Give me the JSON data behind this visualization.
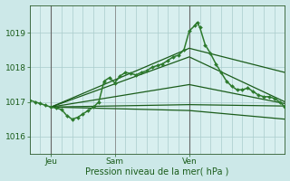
{
  "bg_color": "#cce8e8",
  "plot_bg_color": "#d8efef",
  "grid_color": "#aacccc",
  "line_color": "#1a5c1a",
  "line_color2": "#2e7d2e",
  "xlabel": "Pression niveau de la mer( hPa )",
  "xtick_labels": [
    "Jeu",
    "Sam",
    "Ven"
  ],
  "ylim": [
    1015.5,
    1019.8
  ],
  "yticks": [
    1016,
    1017,
    1018,
    1019
  ],
  "xlim": [
    0,
    96
  ],
  "xtick_pos": [
    8,
    32,
    60
  ],
  "num_xgrid": 24,
  "main_line": {
    "x": [
      0,
      2,
      4,
      6,
      8,
      10,
      12,
      14,
      16,
      18,
      20,
      22,
      24,
      26,
      28,
      30,
      32,
      34,
      36,
      38,
      40,
      42,
      44,
      46,
      48,
      50,
      52,
      54,
      56,
      58,
      60,
      62,
      63,
      64,
      66,
      68,
      70,
      72,
      74,
      76,
      78,
      80,
      82,
      84,
      86,
      88,
      90,
      92,
      94,
      96
    ],
    "y": [
      1017.05,
      1017.0,
      1016.95,
      1016.9,
      1016.85,
      1016.82,
      1016.78,
      1016.6,
      1016.5,
      1016.55,
      1016.65,
      1016.75,
      1016.85,
      1017.0,
      1017.6,
      1017.7,
      1017.55,
      1017.75,
      1017.85,
      1017.82,
      1017.78,
      1017.85,
      1017.9,
      1018.0,
      1018.05,
      1018.1,
      1018.2,
      1018.3,
      1018.35,
      1018.5,
      1019.05,
      1019.2,
      1019.3,
      1019.15,
      1018.65,
      1018.4,
      1018.1,
      1017.85,
      1017.6,
      1017.45,
      1017.35,
      1017.35,
      1017.4,
      1017.3,
      1017.2,
      1017.15,
      1017.15,
      1017.1,
      1017.0,
      1016.85
    ],
    "color": "#2d7a2d",
    "lw": 1.1,
    "marker": "D",
    "ms": 2.0
  },
  "fan_lines": [
    {
      "x": [
        8,
        60,
        96
      ],
      "y": [
        1016.85,
        1018.55,
        1017.85
      ],
      "color": "#1a5c1a",
      "lw": 0.9
    },
    {
      "x": [
        8,
        60,
        96
      ],
      "y": [
        1016.85,
        1018.3,
        1017.0
      ],
      "color": "#1a5c1a",
      "lw": 0.9
    },
    {
      "x": [
        8,
        60,
        96
      ],
      "y": [
        1016.85,
        1017.5,
        1016.95
      ],
      "color": "#1a5c1a",
      "lw": 0.9
    },
    {
      "x": [
        8,
        60,
        96
      ],
      "y": [
        1016.85,
        1016.92,
        1016.88
      ],
      "color": "#1a5c1a",
      "lw": 0.9
    },
    {
      "x": [
        8,
        60,
        96
      ],
      "y": [
        1016.85,
        1016.75,
        1016.5
      ],
      "color": "#1a5c1a",
      "lw": 0.9
    }
  ],
  "vlines": [
    {
      "x": 8,
      "color": "#666666",
      "lw": 0.8
    },
    {
      "x": 32,
      "color": "#888888",
      "lw": 0.6
    },
    {
      "x": 60,
      "color": "#666666",
      "lw": 0.8
    }
  ]
}
